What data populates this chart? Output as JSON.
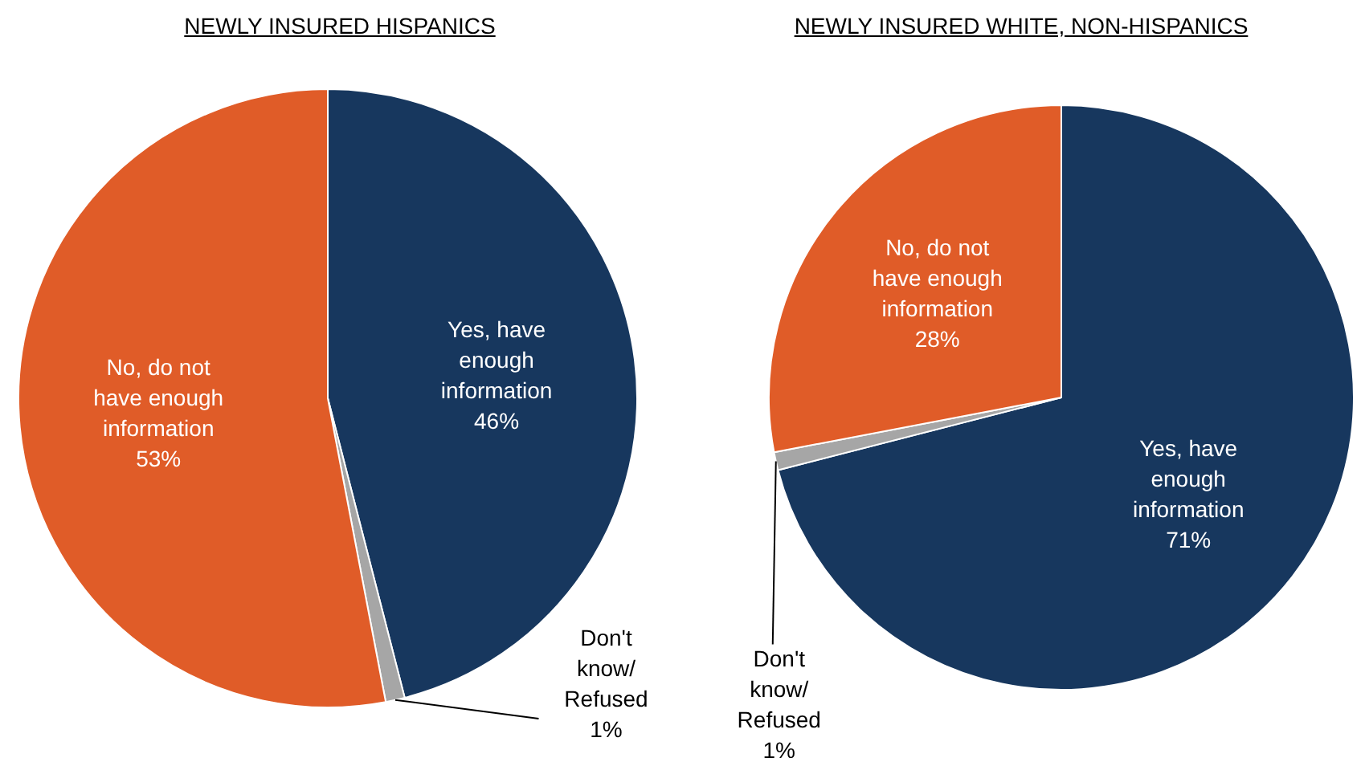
{
  "chart_data": [
    {
      "type": "pie",
      "title": "NEWLY INSURED HISPANICS",
      "categories": [
        "Yes, have enough information",
        "Don't know/ Refused",
        "No, do not have enough information"
      ],
      "values": [
        46,
        1,
        53
      ],
      "colors": [
        "#17375e",
        "#a6a6a6",
        "#e05c28"
      ],
      "value_labels": [
        "46%",
        "1%",
        "53%"
      ]
    },
    {
      "type": "pie",
      "title": "NEWLY INSURED WHITE, NON-HISPANICS",
      "categories": [
        "Yes, have enough information",
        "Don't know/ Refused",
        "No, do not have enough information"
      ],
      "values": [
        71,
        1,
        28
      ],
      "colors": [
        "#17375e",
        "#a6a6a6",
        "#e05c28"
      ],
      "value_labels": [
        "71%",
        "1%",
        "28%"
      ]
    }
  ]
}
